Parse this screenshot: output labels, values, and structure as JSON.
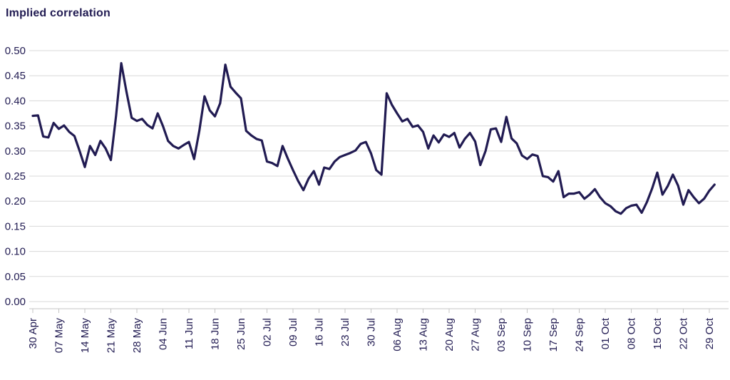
{
  "page": {
    "background": "#ffffff"
  },
  "header": {
    "title": "Implied correlation"
  },
  "chart_data": {
    "type": "line",
    "title": "Implied correlation",
    "xlabel": "",
    "ylabel": "",
    "ylim": [
      0.0,
      0.5
    ],
    "y_tick_step": 0.05,
    "y_tick_labels": [
      "0.00",
      "0.05",
      "0.10",
      "0.15",
      "0.20",
      "0.25",
      "0.30",
      "0.35",
      "0.40",
      "0.45",
      "0.50"
    ],
    "x_tick_labels": [
      "30 Apr",
      "07 May",
      "14 May",
      "21 May",
      "28 May",
      "04 Jun",
      "11 Jun",
      "18 Jun",
      "25 Jun",
      "02 Jul",
      "09 Jul",
      "16 Jul",
      "23 Jul",
      "30 Jul",
      "06 Aug",
      "13 Aug",
      "20 Aug",
      "27 Aug",
      "03 Sep",
      "10 Sep",
      "17 Sep",
      "24 Sep",
      "01 Oct",
      "08 Oct",
      "15 Oct",
      "22 Oct",
      "29 Oct"
    ],
    "points_per_week": 5,
    "grid": "horizontal",
    "legend_position": "none",
    "series": [
      {
        "name": "Implied correlation",
        "values": [
          0.37,
          0.371,
          0.329,
          0.327,
          0.356,
          0.344,
          0.351,
          0.338,
          0.33,
          0.3,
          0.268,
          0.31,
          0.292,
          0.32,
          0.305,
          0.282,
          0.37,
          0.475,
          0.418,
          0.366,
          0.36,
          0.364,
          0.352,
          0.345,
          0.375,
          0.35,
          0.32,
          0.31,
          0.305,
          0.312,
          0.318,
          0.284,
          0.34,
          0.409,
          0.381,
          0.369,
          0.395,
          0.472,
          0.428,
          0.416,
          0.405,
          0.34,
          0.331,
          0.324,
          0.321,
          0.279,
          0.276,
          0.27,
          0.31,
          0.285,
          0.262,
          0.24,
          0.222,
          0.245,
          0.26,
          0.233,
          0.267,
          0.264,
          0.279,
          0.288,
          0.292,
          0.296,
          0.301,
          0.314,
          0.318,
          0.295,
          0.262,
          0.253,
          0.415,
          0.392,
          0.375,
          0.359,
          0.364,
          0.348,
          0.351,
          0.338,
          0.305,
          0.331,
          0.317,
          0.333,
          0.328,
          0.336,
          0.307,
          0.324,
          0.336,
          0.319,
          0.272,
          0.3,
          0.343,
          0.345,
          0.318,
          0.368,
          0.325,
          0.315,
          0.291,
          0.284,
          0.293,
          0.29,
          0.25,
          0.248,
          0.239,
          0.26,
          0.208,
          0.215,
          0.215,
          0.218,
          0.205,
          0.213,
          0.224,
          0.208,
          0.196,
          0.19,
          0.18,
          0.175,
          0.186,
          0.191,
          0.193,
          0.177,
          0.198,
          0.225,
          0.257,
          0.213,
          0.23,
          0.253,
          0.231,
          0.193,
          0.222,
          0.208,
          0.196,
          0.205,
          0.221,
          0.233
        ]
      }
    ],
    "colors": {
      "line": "#211b52",
      "text": "#211b52",
      "grid": "#d8d8d8",
      "axis": "#c4c4c4",
      "background": "#ffffff"
    }
  }
}
